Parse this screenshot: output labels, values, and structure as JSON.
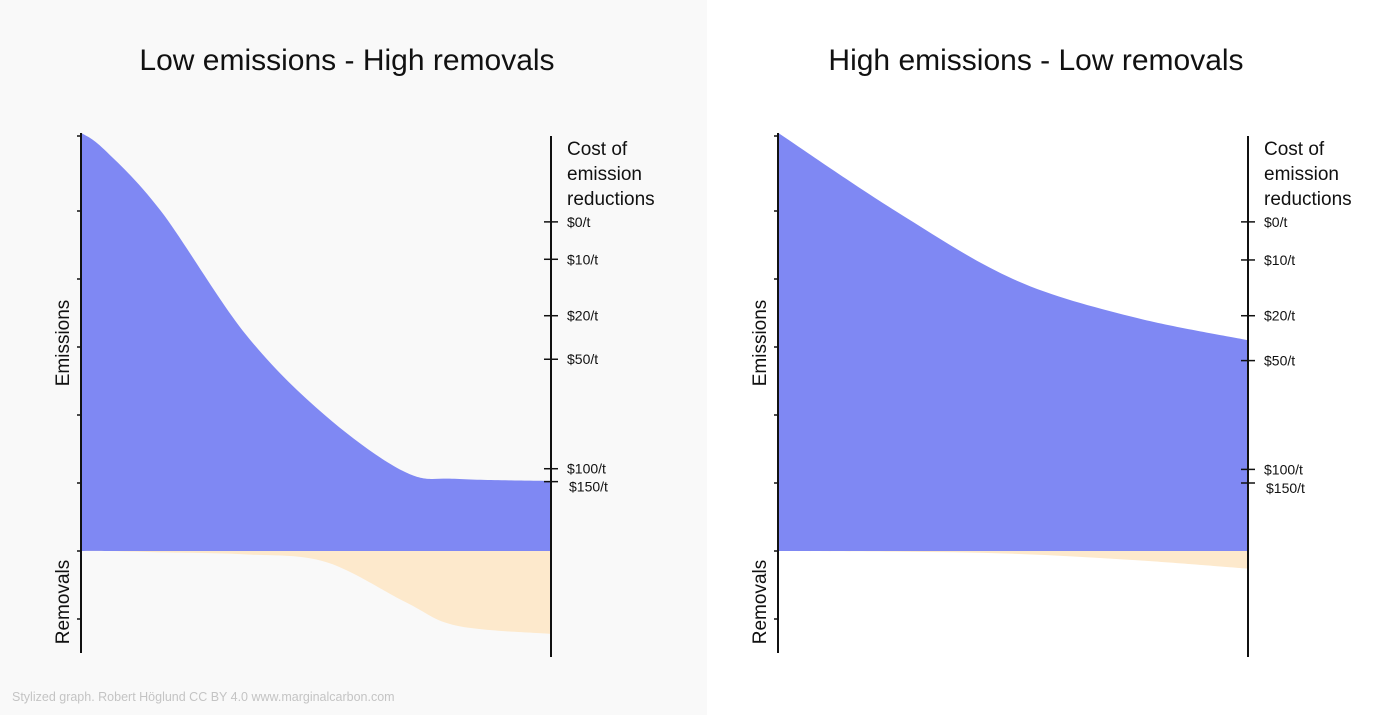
{
  "footer": "Stylized graph. Robert Höglund CC BY 4.0  www.marginalcarbon.com",
  "colors": {
    "emissions": "#7f88f3",
    "removals": "#fde9cc",
    "left_panel_bg": "#f9f9f9",
    "axis": "#111111"
  },
  "chart_data": [
    {
      "type": "area",
      "title": "Low emissions - High removals",
      "ylabel_top": "Emissions",
      "ylabel_bottom": "Removals",
      "right_axis_title": [
        "Cost of",
        "emission",
        "reductions"
      ],
      "ylim": [
        -1.5,
        6.2
      ],
      "left_ticks": [
        -1,
        0,
        1,
        2,
        3,
        4,
        5,
        6
      ],
      "right_ticks": [
        {
          "label": "$0/t",
          "y": 4.84
        },
        {
          "label": "$10/t",
          "y": 4.29
        },
        {
          "label": "$20/t",
          "y": 3.46
        },
        {
          "label": "$50/t",
          "y": 2.82
        },
        {
          "label": "$100/t",
          "y": 1.21
        },
        {
          "label": "$150/t",
          "y": 1.02
        }
      ],
      "x": [
        0,
        5,
        17,
        35,
        52,
        69,
        80,
        100
      ],
      "series": [
        {
          "values": [
            6.15,
            5.9,
            5.0,
            3.19,
            1.99,
            1.16,
            1.06,
            1.03
          ]
        },
        {
          "values": [
            0,
            0,
            -0.02,
            -0.05,
            -0.16,
            -0.75,
            -1.1,
            -1.22
          ]
        }
      ]
    },
    {
      "type": "area",
      "title": "High emissions - Low removals",
      "ylabel_top": "Emissions",
      "ylabel_bottom": "Removals",
      "right_axis_title": [
        "Cost of",
        "emission",
        "reductions"
      ],
      "ylim": [
        -1.5,
        6.2
      ],
      "left_ticks": [
        -1,
        0,
        1,
        2,
        3,
        4,
        5,
        6
      ],
      "right_ticks": [
        {
          "label": "$0/t",
          "y": 4.84
        },
        {
          "label": "$10/t",
          "y": 4.28
        },
        {
          "label": "$20/t",
          "y": 3.46
        },
        {
          "label": "$50/t",
          "y": 2.8
        },
        {
          "label": "$100/t",
          "y": 1.2
        },
        {
          "label": "$150/t",
          "y": 1.0
        }
      ],
      "x": [
        0,
        25,
        50,
        75,
        100
      ],
      "series": [
        {
          "values": [
            6.15,
            5.0,
            4.0,
            3.45,
            3.1
          ]
        },
        {
          "values": [
            0,
            -0.01,
            -0.04,
            -0.13,
            -0.26
          ]
        }
      ]
    }
  ]
}
